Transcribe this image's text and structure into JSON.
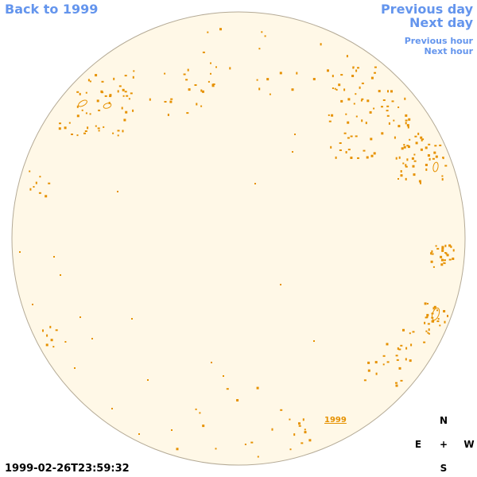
{
  "nav": {
    "back": "Back to 1999",
    "previous_day": "Previous day",
    "next_day": "Next day",
    "previous_hour": "Previous hour",
    "next_hour": "Next hour"
  },
  "timestamp": "1999-02-26T23:59:32",
  "compass": {
    "north": "N",
    "east": "E",
    "west": "W",
    "south": "S",
    "center": "+"
  },
  "year_label": "1999",
  "colors": {
    "link": "#6495ED",
    "sky_fill": "#FFF8E7",
    "sky_border": "#B4AA96",
    "marks": "#E69100"
  },
  "icons": {
    "sky_disc": "all-sky-disc",
    "star_marks": "orange-star-marks"
  }
}
